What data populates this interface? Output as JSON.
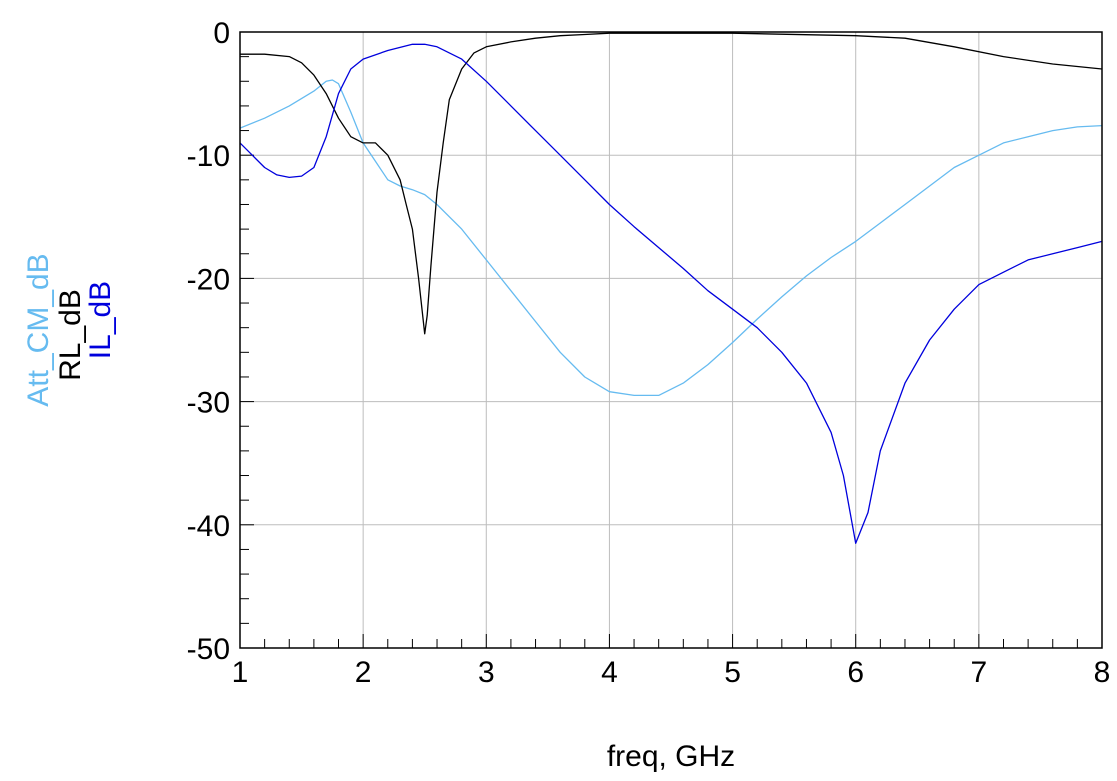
{
  "chart_data": {
    "type": "line",
    "xlabel": "freq, GHz",
    "ylabels": [
      {
        "text": "Att_CM_dB",
        "color": "#66bbf0"
      },
      {
        "text": "RL_dB",
        "color": "#000000"
      },
      {
        "text": "IL_dB",
        "color": "#0000dd"
      }
    ],
    "xlim": [
      1,
      8
    ],
    "ylim": [
      -50,
      0
    ],
    "x_ticks": [
      "1",
      "2",
      "3",
      "4",
      "5",
      "6",
      "7",
      "8"
    ],
    "y_ticks": [
      "0",
      "-10",
      "-20",
      "-30",
      "-40",
      "-50"
    ],
    "grid": true,
    "series": [
      {
        "name": "Att_CM_dB",
        "color": "#66bbf0",
        "points": [
          [
            1.0,
            -7.8
          ],
          [
            1.2,
            -7.0
          ],
          [
            1.4,
            -6.0
          ],
          [
            1.6,
            -4.8
          ],
          [
            1.7,
            -4.0
          ],
          [
            1.75,
            -3.9
          ],
          [
            1.8,
            -4.2
          ],
          [
            1.9,
            -6.5
          ],
          [
            2.0,
            -9.0
          ],
          [
            2.1,
            -10.5
          ],
          [
            2.2,
            -12.0
          ],
          [
            2.3,
            -12.5
          ],
          [
            2.4,
            -12.8
          ],
          [
            2.5,
            -13.2
          ],
          [
            2.6,
            -14.0
          ],
          [
            2.8,
            -16.0
          ],
          [
            3.0,
            -18.5
          ],
          [
            3.2,
            -21.0
          ],
          [
            3.4,
            -23.5
          ],
          [
            3.6,
            -26.0
          ],
          [
            3.8,
            -28.0
          ],
          [
            4.0,
            -29.2
          ],
          [
            4.2,
            -29.5
          ],
          [
            4.4,
            -29.5
          ],
          [
            4.6,
            -28.5
          ],
          [
            4.8,
            -27.0
          ],
          [
            5.0,
            -25.2
          ],
          [
            5.2,
            -23.3
          ],
          [
            5.4,
            -21.5
          ],
          [
            5.6,
            -19.8
          ],
          [
            5.8,
            -18.3
          ],
          [
            6.0,
            -17.0
          ],
          [
            6.2,
            -15.5
          ],
          [
            6.4,
            -14.0
          ],
          [
            6.6,
            -12.5
          ],
          [
            6.8,
            -11.0
          ],
          [
            7.0,
            -10.0
          ],
          [
            7.2,
            -9.0
          ],
          [
            7.4,
            -8.5
          ],
          [
            7.6,
            -8.0
          ],
          [
            7.8,
            -7.7
          ],
          [
            8.0,
            -7.6
          ]
        ]
      },
      {
        "name": "RL_dB",
        "color": "#000000",
        "points": [
          [
            1.0,
            -1.8
          ],
          [
            1.2,
            -1.8
          ],
          [
            1.4,
            -2.0
          ],
          [
            1.5,
            -2.5
          ],
          [
            1.6,
            -3.5
          ],
          [
            1.7,
            -5.0
          ],
          [
            1.8,
            -7.0
          ],
          [
            1.9,
            -8.5
          ],
          [
            2.0,
            -9.0
          ],
          [
            2.1,
            -9.0
          ],
          [
            2.2,
            -10.0
          ],
          [
            2.3,
            -12.0
          ],
          [
            2.35,
            -14.0
          ],
          [
            2.4,
            -16.0
          ],
          [
            2.45,
            -20.0
          ],
          [
            2.5,
            -24.5
          ],
          [
            2.52,
            -23.0
          ],
          [
            2.55,
            -19.0
          ],
          [
            2.6,
            -13.0
          ],
          [
            2.65,
            -9.0
          ],
          [
            2.7,
            -5.5
          ],
          [
            2.8,
            -3.0
          ],
          [
            2.9,
            -1.7
          ],
          [
            3.0,
            -1.2
          ],
          [
            3.2,
            -0.8
          ],
          [
            3.4,
            -0.5
          ],
          [
            3.6,
            -0.3
          ],
          [
            3.8,
            -0.2
          ],
          [
            4.0,
            -0.1
          ],
          [
            5.0,
            -0.1
          ],
          [
            6.0,
            -0.3
          ],
          [
            6.4,
            -0.5
          ],
          [
            6.8,
            -1.2
          ],
          [
            7.2,
            -2.0
          ],
          [
            7.6,
            -2.6
          ],
          [
            8.0,
            -3.0
          ]
        ]
      },
      {
        "name": "IL_dB",
        "color": "#0000dd",
        "points": [
          [
            1.0,
            -9.0
          ],
          [
            1.1,
            -10.0
          ],
          [
            1.2,
            -11.0
          ],
          [
            1.3,
            -11.6
          ],
          [
            1.4,
            -11.8
          ],
          [
            1.5,
            -11.7
          ],
          [
            1.6,
            -11.0
          ],
          [
            1.7,
            -8.5
          ],
          [
            1.8,
            -5.0
          ],
          [
            1.9,
            -3.0
          ],
          [
            2.0,
            -2.2
          ],
          [
            2.2,
            -1.5
          ],
          [
            2.4,
            -1.0
          ],
          [
            2.5,
            -1.0
          ],
          [
            2.6,
            -1.2
          ],
          [
            2.8,
            -2.2
          ],
          [
            3.0,
            -4.0
          ],
          [
            3.2,
            -6.0
          ],
          [
            3.4,
            -8.0
          ],
          [
            3.6,
            -10.0
          ],
          [
            3.8,
            -12.0
          ],
          [
            4.0,
            -14.0
          ],
          [
            4.2,
            -15.8
          ],
          [
            4.4,
            -17.5
          ],
          [
            4.6,
            -19.2
          ],
          [
            4.8,
            -21.0
          ],
          [
            5.0,
            -22.5
          ],
          [
            5.2,
            -24.0
          ],
          [
            5.4,
            -26.0
          ],
          [
            5.6,
            -28.5
          ],
          [
            5.8,
            -32.5
          ],
          [
            5.9,
            -36.0
          ],
          [
            6.0,
            -41.5
          ],
          [
            6.1,
            -39.0
          ],
          [
            6.2,
            -34.0
          ],
          [
            6.4,
            -28.5
          ],
          [
            6.6,
            -25.0
          ],
          [
            6.8,
            -22.5
          ],
          [
            7.0,
            -20.5
          ],
          [
            7.2,
            -19.5
          ],
          [
            7.4,
            -18.5
          ],
          [
            7.6,
            -18.0
          ],
          [
            7.8,
            -17.5
          ],
          [
            8.0,
            -17.0
          ]
        ]
      }
    ]
  }
}
